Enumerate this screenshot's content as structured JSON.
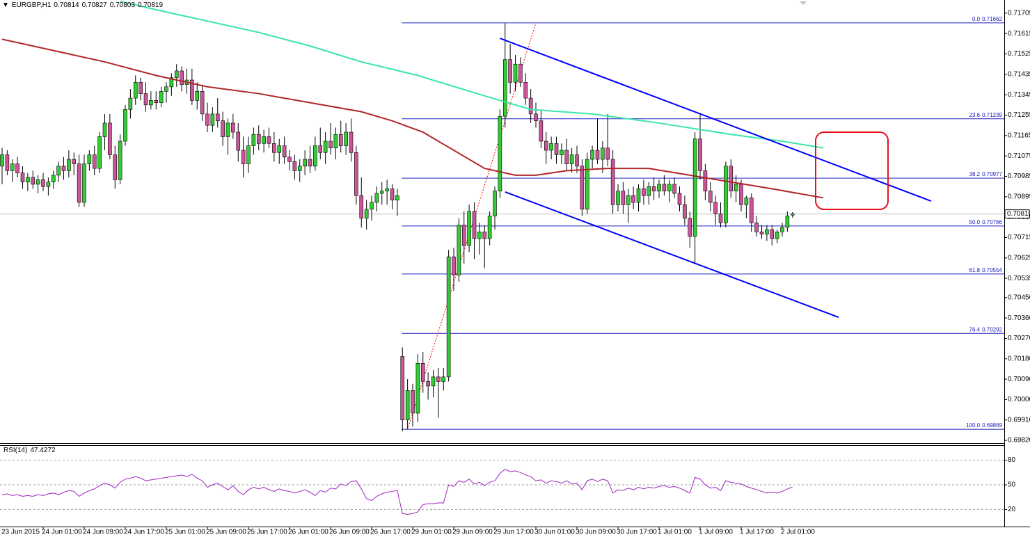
{
  "chart_data": {
    "type": "candlestick",
    "symbol": "EURGBP,H1",
    "up_color": "#33cc33",
    "down_color": "#cc5599",
    "categories": [
      "23 Jun 2015",
      null,
      null,
      null,
      null,
      null,
      null,
      null,
      "24 Jun 01:00",
      null,
      null,
      null,
      null,
      null,
      null,
      null,
      "24 Jun 09:00",
      null,
      null,
      null,
      null,
      null,
      null,
      null,
      "24 Jun 17:00",
      null,
      null,
      null,
      null,
      null,
      null,
      null,
      "25 Jun 01:00",
      null,
      null,
      null,
      null,
      null,
      null,
      null,
      "25 Jun 09:00",
      null,
      null,
      null,
      null,
      null,
      null,
      null,
      "25 Jun 17:00",
      null,
      null,
      null,
      null,
      null,
      null,
      null,
      "26 Jun 01:00",
      null,
      null,
      null,
      null,
      null,
      null,
      null,
      "26 Jun 09:00",
      null,
      null,
      null,
      null,
      null,
      null,
      null,
      "26 Jun 17:00",
      null,
      null,
      null,
      null,
      null,
      null,
      null,
      "29 Jun 01:00",
      null,
      null,
      null,
      null,
      null,
      null,
      null,
      "29 Jun 09:00",
      null,
      null,
      null,
      null,
      null,
      null,
      null,
      "29 Jun 17:00",
      null,
      null,
      null,
      null,
      null,
      null,
      null,
      "30 Jun 01:00",
      null,
      null,
      null,
      null,
      null,
      null,
      null,
      "30 Jun 09:00",
      null,
      null,
      null,
      null,
      null,
      null,
      null,
      "30 Jun 17:00",
      null,
      null,
      null,
      null,
      null,
      null,
      null,
      "1 Jul 01:00",
      null,
      null,
      null,
      null,
      null,
      null,
      null,
      "1 Jul 09:00",
      null,
      null,
      null,
      null,
      null,
      null,
      null,
      "1 Jul 17:00",
      null,
      null,
      null,
      null,
      null,
      null,
      null,
      "2 Jul 01:00",
      null,
      null
    ],
    "candles": [
      [
        0.7103,
        0.7111,
        0.7095,
        0.7108
      ],
      [
        0.7108,
        0.711,
        0.7099,
        0.7101
      ],
      [
        0.7101,
        0.7106,
        0.7096,
        0.7104
      ],
      [
        0.7104,
        0.7107,
        0.7098,
        0.71
      ],
      [
        0.71,
        0.7103,
        0.7093,
        0.7096
      ],
      [
        0.7096,
        0.71,
        0.7092,
        0.7098
      ],
      [
        0.7098,
        0.7101,
        0.7093,
        0.7095
      ],
      [
        0.7095,
        0.7099,
        0.7091,
        0.7097
      ],
      [
        0.7097,
        0.71,
        0.7092,
        0.7094
      ],
      [
        0.7094,
        0.7098,
        0.709,
        0.7096
      ],
      [
        0.7096,
        0.7101,
        0.7093,
        0.7099
      ],
      [
        0.7099,
        0.7105,
        0.7096,
        0.7103
      ],
      [
        0.7103,
        0.7107,
        0.7097,
        0.7101
      ],
      [
        0.7101,
        0.711,
        0.7098,
        0.7106
      ],
      [
        0.7106,
        0.7109,
        0.7099,
        0.7104
      ],
      [
        0.7104,
        0.7108,
        0.7085,
        0.7087
      ],
      [
        0.7087,
        0.7108,
        0.7085,
        0.7104
      ],
      [
        0.7104,
        0.711,
        0.7101,
        0.7108
      ],
      [
        0.7108,
        0.7112,
        0.7099,
        0.7102
      ],
      [
        0.7102,
        0.7118,
        0.71,
        0.7116
      ],
      [
        0.7116,
        0.7126,
        0.711,
        0.7122
      ],
      [
        0.7122,
        0.7126,
        0.7106,
        0.7108
      ],
      [
        0.7108,
        0.7112,
        0.7093,
        0.7097
      ],
      [
        0.7097,
        0.7117,
        0.7095,
        0.7114
      ],
      [
        0.7114,
        0.713,
        0.7112,
        0.7128
      ],
      [
        0.7128,
        0.7137,
        0.7124,
        0.7133
      ],
      [
        0.7133,
        0.7143,
        0.713,
        0.714
      ],
      [
        0.714,
        0.7142,
        0.7132,
        0.7135
      ],
      [
        0.7135,
        0.714,
        0.7127,
        0.713
      ],
      [
        0.713,
        0.7136,
        0.7128,
        0.7132
      ],
      [
        0.7132,
        0.7136,
        0.7128,
        0.7131
      ],
      [
        0.7131,
        0.7138,
        0.7129,
        0.7136
      ],
      [
        0.7136,
        0.714,
        0.7131,
        0.7138
      ],
      [
        0.7138,
        0.7144,
        0.7134,
        0.7142
      ],
      [
        0.7142,
        0.7148,
        0.7138,
        0.7145
      ],
      [
        0.7145,
        0.7147,
        0.7136,
        0.7139
      ],
      [
        0.7139,
        0.7146,
        0.7135,
        0.7141
      ],
      [
        0.7141,
        0.7146,
        0.713,
        0.7132
      ],
      [
        0.7132,
        0.714,
        0.7128,
        0.7136
      ],
      [
        0.7136,
        0.7139,
        0.7123,
        0.7126
      ],
      [
        0.7126,
        0.7131,
        0.7118,
        0.7121
      ],
      [
        0.7121,
        0.7129,
        0.7118,
        0.7126
      ],
      [
        0.7126,
        0.7133,
        0.712,
        0.7123
      ],
      [
        0.7123,
        0.7127,
        0.7112,
        0.7116
      ],
      [
        0.7116,
        0.7124,
        0.7108,
        0.7122
      ],
      [
        0.7122,
        0.7126,
        0.7115,
        0.7118
      ],
      [
        0.7118,
        0.7122,
        0.7105,
        0.711
      ],
      [
        0.711,
        0.7116,
        0.7098,
        0.7104
      ],
      [
        0.7104,
        0.7116,
        0.71,
        0.7112
      ],
      [
        0.7112,
        0.712,
        0.7108,
        0.7117
      ],
      [
        0.7117,
        0.7121,
        0.711,
        0.7113
      ],
      [
        0.7113,
        0.7119,
        0.7109,
        0.7116
      ],
      [
        0.7116,
        0.712,
        0.7111,
        0.7113
      ],
      [
        0.7113,
        0.7118,
        0.7105,
        0.7109
      ],
      [
        0.7109,
        0.7115,
        0.7104,
        0.7112
      ],
      [
        0.7112,
        0.7116,
        0.7104,
        0.7107
      ],
      [
        0.7107,
        0.711,
        0.7101,
        0.7105
      ],
      [
        0.7105,
        0.7108,
        0.7097,
        0.7101
      ],
      [
        0.7101,
        0.7106,
        0.7096,
        0.7103
      ],
      [
        0.7103,
        0.711,
        0.7099,
        0.7106
      ],
      [
        0.7106,
        0.7112,
        0.71,
        0.7103
      ],
      [
        0.7103,
        0.7116,
        0.7101,
        0.7112
      ],
      [
        0.7112,
        0.712,
        0.7106,
        0.7109
      ],
      [
        0.7109,
        0.7118,
        0.7104,
        0.7114
      ],
      [
        0.7114,
        0.7122,
        0.7108,
        0.7111
      ],
      [
        0.7111,
        0.712,
        0.7106,
        0.7117
      ],
      [
        0.7117,
        0.7123,
        0.7109,
        0.7112
      ],
      [
        0.7112,
        0.7122,
        0.7108,
        0.7118
      ],
      [
        0.7118,
        0.7124,
        0.7105,
        0.7109
      ],
      [
        0.7109,
        0.7112,
        0.7086,
        0.709
      ],
      [
        0.709,
        0.7098,
        0.7076,
        0.708
      ],
      [
        0.708,
        0.7088,
        0.7075,
        0.7084
      ],
      [
        0.7084,
        0.709,
        0.7079,
        0.7087
      ],
      [
        0.7087,
        0.7094,
        0.7083,
        0.7091
      ],
      [
        0.7091,
        0.7096,
        0.7086,
        0.7092
      ],
      [
        0.7092,
        0.7097,
        0.7086,
        0.7093
      ],
      [
        0.7093,
        0.7095,
        0.7084,
        0.7088
      ],
      [
        0.7088,
        0.7093,
        0.7081,
        0.709
      ],
      [
        0.7019,
        0.7023,
        0.6986,
        0.6991
      ],
      [
        0.6991,
        0.7009,
        0.6987,
        0.7004
      ],
      [
        0.7004,
        0.7007,
        0.6988,
        0.6994
      ],
      [
        0.6994,
        0.702,
        0.699,
        0.7016
      ],
      [
        0.7016,
        0.7021,
        0.7003,
        0.7008
      ],
      [
        0.7008,
        0.7012,
        0.7,
        0.7006
      ],
      [
        0.7006,
        0.7013,
        0.7001,
        0.701
      ],
      [
        0.701,
        0.7014,
        0.6992,
        0.7008
      ],
      [
        0.7008,
        0.7014,
        0.7004,
        0.701
      ],
      [
        0.701,
        0.7066,
        0.7008,
        0.7063
      ],
      [
        0.7063,
        0.7067,
        0.7048,
        0.7055
      ],
      [
        0.7055,
        0.708,
        0.7052,
        0.7077
      ],
      [
        0.7077,
        0.7083,
        0.706,
        0.7068
      ],
      [
        0.7068,
        0.7086,
        0.7065,
        0.7083
      ],
      [
        0.7083,
        0.7087,
        0.7062,
        0.7071
      ],
      [
        0.7071,
        0.7078,
        0.7064,
        0.7074
      ],
      [
        0.7074,
        0.7077,
        0.7058,
        0.7071
      ],
      [
        0.7071,
        0.7083,
        0.7068,
        0.7081
      ],
      [
        0.7081,
        0.7094,
        0.7075,
        0.7092
      ],
      [
        0.7092,
        0.7128,
        0.7089,
        0.7125
      ],
      [
        0.7125,
        0.7166,
        0.712,
        0.715
      ],
      [
        0.715,
        0.7157,
        0.7135,
        0.714
      ],
      [
        0.714,
        0.7152,
        0.7136,
        0.7148
      ],
      [
        0.7148,
        0.7151,
        0.7138,
        0.714
      ],
      [
        0.714,
        0.7144,
        0.713,
        0.7133
      ],
      [
        0.7133,
        0.7137,
        0.7122,
        0.7126
      ],
      [
        0.7126,
        0.7131,
        0.712,
        0.7123
      ],
      [
        0.7123,
        0.7128,
        0.7111,
        0.7114
      ],
      [
        0.7114,
        0.7118,
        0.7104,
        0.711
      ],
      [
        0.711,
        0.7116,
        0.7106,
        0.7113
      ],
      [
        0.7113,
        0.7116,
        0.7104,
        0.7108
      ],
      [
        0.7108,
        0.7113,
        0.7104,
        0.711
      ],
      [
        0.711,
        0.7115,
        0.7101,
        0.7104
      ],
      [
        0.7104,
        0.7111,
        0.71,
        0.7108
      ],
      [
        0.7108,
        0.7112,
        0.71,
        0.7103
      ],
      [
        0.7103,
        0.7106,
        0.7081,
        0.7084
      ],
      [
        0.7084,
        0.7109,
        0.7082,
        0.7106
      ],
      [
        0.7106,
        0.7112,
        0.7102,
        0.711
      ],
      [
        0.711,
        0.7124,
        0.7104,
        0.7106
      ],
      [
        0.7106,
        0.7114,
        0.71,
        0.7111
      ],
      [
        0.7111,
        0.7126,
        0.7103,
        0.7106
      ],
      [
        0.7106,
        0.711,
        0.7082,
        0.7086
      ],
      [
        0.7086,
        0.7095,
        0.7083,
        0.7092
      ],
      [
        0.7092,
        0.7096,
        0.7082,
        0.7086
      ],
      [
        0.7086,
        0.7093,
        0.7078,
        0.709
      ],
      [
        0.709,
        0.7094,
        0.7084,
        0.7087
      ],
      [
        0.7087,
        0.7095,
        0.7083,
        0.7093
      ],
      [
        0.7093,
        0.7097,
        0.7086,
        0.709
      ],
      [
        0.709,
        0.7096,
        0.7086,
        0.7094
      ],
      [
        0.7094,
        0.7098,
        0.7088,
        0.7092
      ],
      [
        0.7092,
        0.7097,
        0.7089,
        0.7095
      ],
      [
        0.7095,
        0.7099,
        0.709,
        0.7092
      ],
      [
        0.7092,
        0.7097,
        0.7087,
        0.7095
      ],
      [
        0.7095,
        0.7098,
        0.7089,
        0.7091
      ],
      [
        0.7091,
        0.7094,
        0.7083,
        0.7086
      ],
      [
        0.7086,
        0.709,
        0.7077,
        0.708
      ],
      [
        0.708,
        0.7083,
        0.7067,
        0.7072
      ],
      [
        0.7072,
        0.7118,
        0.706,
        0.7115
      ],
      [
        0.7115,
        0.7126,
        0.7097,
        0.7101
      ],
      [
        0.7101,
        0.7104,
        0.7088,
        0.7092
      ],
      [
        0.7092,
        0.7096,
        0.7083,
        0.7087
      ],
      [
        0.7087,
        0.709,
        0.7077,
        0.7082
      ],
      [
        0.7082,
        0.7087,
        0.7076,
        0.7078
      ],
      [
        0.7078,
        0.7105,
        0.7076,
        0.7103
      ],
      [
        0.7103,
        0.7106,
        0.7089,
        0.7092
      ],
      [
        0.7092,
        0.7099,
        0.7087,
        0.7095
      ],
      [
        0.7095,
        0.7097,
        0.7083,
        0.7086
      ],
      [
        0.7086,
        0.709,
        0.708,
        0.7089
      ],
      [
        0.7089,
        0.7091,
        0.7074,
        0.7078
      ],
      [
        0.7078,
        0.7081,
        0.7072,
        0.7074
      ],
      [
        0.7074,
        0.7077,
        0.7071,
        0.7073
      ],
      [
        0.7073,
        0.7077,
        0.707,
        0.7075
      ],
      [
        0.7075,
        0.7077,
        0.7068,
        0.7071
      ],
      [
        0.7071,
        0.7075,
        0.7069,
        0.7074
      ],
      [
        0.7074,
        0.7078,
        0.7072,
        0.7076
      ],
      [
        0.7076,
        0.7083,
        0.7074,
        0.7081
      ],
      [
        0.70814,
        0.70827,
        0.70803,
        0.70819
      ]
    ],
    "ylim": [
      0.69808,
      0.71763
    ],
    "yticks": [
      0.71705,
      0.71615,
      0.71525,
      0.71435,
      0.71345,
      0.71255,
      0.71165,
      0.71075,
      0.70985,
      0.70895,
      0.70805,
      0.70715,
      0.70625,
      0.70535,
      {
        "value": 0.7045,
        "label": "0.70450"
      },
      {
        "value": 0.7036,
        "label": "0.70360"
      },
      {
        "value": 0.7027,
        "label": "0.70270"
      },
      {
        "value": 0.7018,
        "label": "0.70180"
      },
      {
        "value": 0.7009,
        "label": "0.70090"
      },
      {
        "value": 0.7,
        "label": "0.70000"
      },
      {
        "value": 0.6991,
        "label": "0.69910"
      },
      {
        "value": 0.6982,
        "label": "0.69820"
      }
    ],
    "moving_averages": [
      {
        "color": "#3ae6a6",
        "x": [
          23,
          30,
          40,
          50,
          60,
          70,
          81,
          94,
          103,
          115,
          128,
          142,
          152,
          160
        ],
        "values": [
          0.71757,
          0.7172,
          0.7167,
          0.7162,
          0.7156,
          0.7149,
          0.7143,
          0.7134,
          0.7128,
          0.7126,
          0.7122,
          0.7117,
          0.7114,
          0.7111
        ]
      },
      {
        "color": "#b0262a",
        "x": [
          0,
          10,
          20,
          30,
          40,
          50,
          60,
          70,
          76,
          82,
          88,
          94,
          100,
          104,
          110,
          118,
          126,
          134,
          142,
          150,
          160
        ],
        "values": [
          0.7159,
          0.7154,
          0.7149,
          0.7143,
          0.7138,
          0.7135,
          0.7131,
          0.7127,
          0.7123,
          0.7118,
          0.711,
          0.7102,
          0.7099,
          0.7099,
          0.7101,
          0.7102,
          0.7102,
          0.7099,
          0.7096,
          0.7093,
          0.7089
        ]
      }
    ],
    "trendlines": [
      {
        "color": "#0000ff",
        "x": [
          97,
          181
        ],
        "values": [
          0.71594,
          0.70876
        ]
      },
      {
        "color": "#0000ff",
        "x": [
          98,
          163
        ],
        "values": [
          0.70916,
          0.70363
        ]
      }
    ],
    "fib_color": "#2020c0",
    "fib_levels": [
      {
        "label": "0.0",
        "value": 0.71662
      },
      {
        "label": "23.6",
        "value": 0.71239
      },
      {
        "label": "38.2",
        "value": 0.70977
      },
      {
        "label": "50.0",
        "value": 0.70766
      },
      {
        "label": "61.8",
        "value": 0.70554
      },
      {
        "label": "76.4",
        "value": 0.70292
      },
      {
        "label": "100.0",
        "value": 0.69869
      }
    ],
    "fib_line": {
      "color": "#ff0000",
      "x": [
        79,
        104
      ],
      "values": [
        0.69869,
        0.71662
      ]
    },
    "rsi": {
      "label": "RSI(14)",
      "color": "#a020c0",
      "ylim": [
        0,
        100
      ],
      "yticks": [
        80,
        50,
        20
      ],
      "values": [
        38,
        39,
        37,
        38,
        36,
        37,
        36,
        38,
        37,
        39,
        40,
        38,
        41,
        43,
        42,
        36,
        40,
        43,
        45,
        49,
        52,
        50,
        46,
        53,
        57,
        58,
        60,
        58,
        55,
        56,
        57,
        58,
        59,
        60,
        61,
        62,
        60,
        63,
        58,
        55,
        47,
        50,
        52,
        48,
        44,
        49,
        42,
        38,
        44,
        47,
        45,
        47,
        44,
        42,
        45,
        43,
        42,
        40,
        42,
        44,
        41,
        37,
        43,
        41,
        46,
        45,
        51,
        49,
        54,
        55,
        45,
        33,
        31,
        36,
        39,
        41,
        42,
        43,
        15,
        14,
        15,
        17,
        26,
        27,
        27,
        28,
        28,
        50,
        48,
        55,
        53,
        57,
        51,
        53,
        49,
        53,
        55,
        64,
        69,
        66,
        67,
        65,
        62,
        60,
        55,
        56,
        52,
        55,
        54,
        52,
        55,
        51,
        52,
        44,
        55,
        57,
        54,
        57,
        55,
        40,
        44,
        43,
        46,
        44,
        47,
        45,
        47,
        46,
        48,
        49,
        47,
        48,
        46,
        43,
        40,
        59,
        57,
        50,
        46,
        47,
        43,
        55,
        53,
        52,
        51,
        48,
        46,
        44,
        42,
        40,
        41,
        40,
        42,
        45,
        47.4272
      ]
    }
  }
}
